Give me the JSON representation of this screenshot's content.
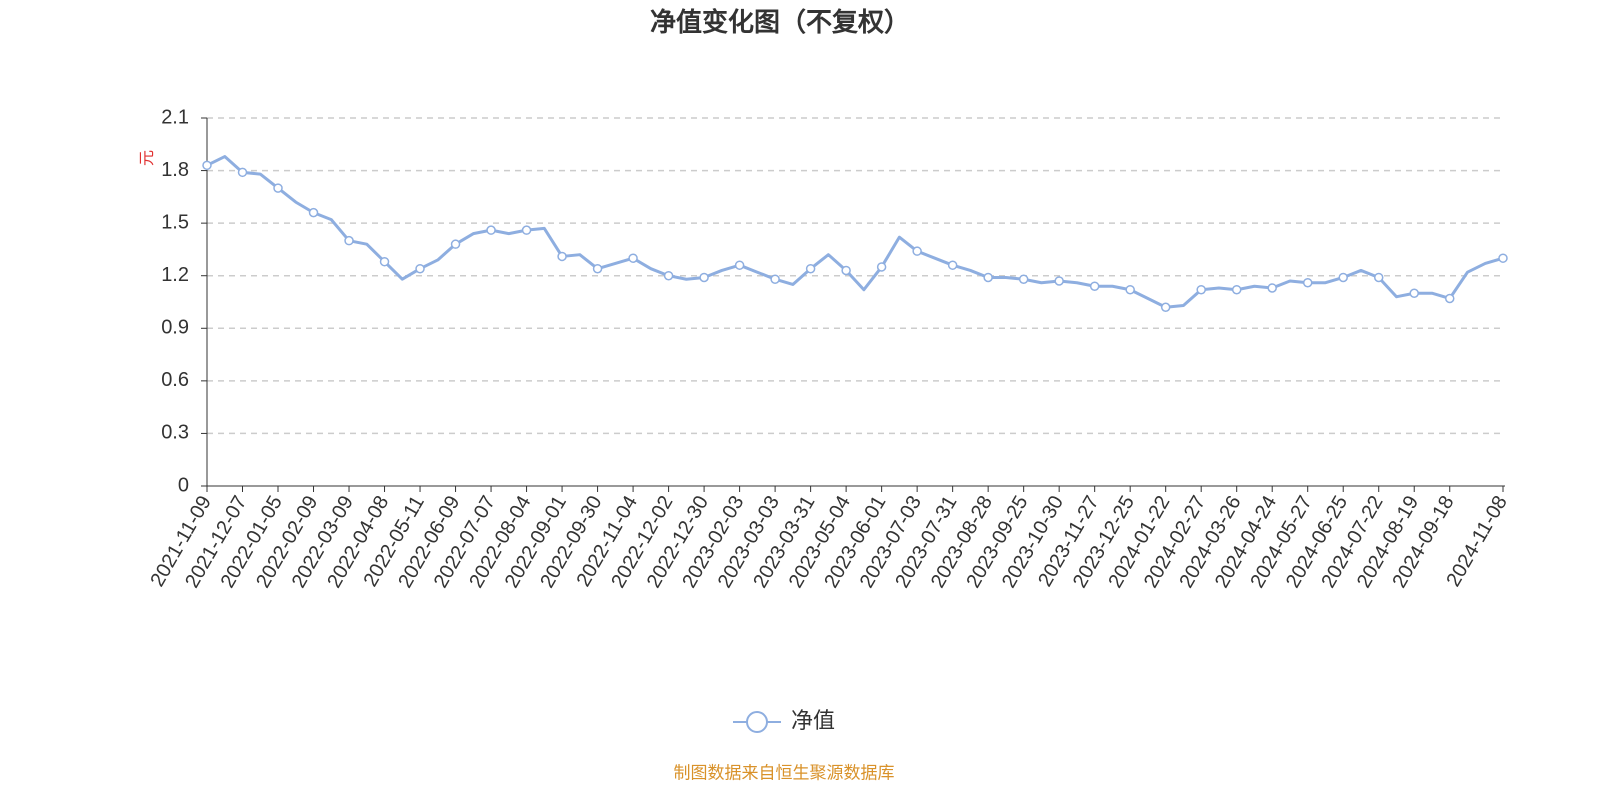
{
  "chart_data": {
    "type": "line",
    "title": "净值变化图（不复权）",
    "y_unit": "元",
    "categories": [
      "2021-11-09",
      null,
      "2021-12-07",
      null,
      "2022-01-05",
      null,
      "2022-02-09",
      null,
      "2022-03-09",
      null,
      "2022-04-08",
      null,
      "2022-05-11",
      null,
      "2022-06-09",
      null,
      "2022-07-07",
      null,
      "2022-08-04",
      null,
      "2022-09-01",
      null,
      "2022-09-30",
      null,
      "2022-11-04",
      null,
      "2022-12-02",
      null,
      "2022-12-30",
      null,
      "2023-02-03",
      null,
      "2023-03-03",
      null,
      "2023-03-31",
      null,
      "2023-05-04",
      null,
      "2023-06-01",
      null,
      "2023-07-03",
      null,
      "2023-07-31",
      null,
      "2023-08-28",
      null,
      "2023-09-25",
      null,
      "2023-10-30",
      null,
      "2023-11-27",
      null,
      "2023-12-25",
      null,
      "2024-01-22",
      null,
      "2024-02-27",
      null,
      "2024-03-26",
      null,
      "2024-04-24",
      null,
      "2024-05-27",
      null,
      "2024-06-25",
      null,
      "2024-07-22",
      null,
      "2024-08-19",
      null,
      "2024-09-18",
      null,
      null,
      "2024-11-08"
    ],
    "series": [
      {
        "name": "净值",
        "color": "#8eaee0",
        "values": [
          1.83,
          1.88,
          1.79,
          1.78,
          1.7,
          1.62,
          1.56,
          1.52,
          1.4,
          1.38,
          1.28,
          1.18,
          1.24,
          1.29,
          1.38,
          1.44,
          1.46,
          1.44,
          1.46,
          1.47,
          1.31,
          1.32,
          1.24,
          1.27,
          1.3,
          1.24,
          1.2,
          1.18,
          1.19,
          1.23,
          1.26,
          1.22,
          1.18,
          1.15,
          1.24,
          1.32,
          1.23,
          1.12,
          1.25,
          1.42,
          1.34,
          1.3,
          1.26,
          1.23,
          1.19,
          1.19,
          1.18,
          1.16,
          1.17,
          1.16,
          1.14,
          1.14,
          1.12,
          1.07,
          1.02,
          1.03,
          1.12,
          1.13,
          1.12,
          1.14,
          1.13,
          1.17,
          1.16,
          1.16,
          1.19,
          1.23,
          1.19,
          1.08,
          1.1,
          1.1,
          1.07,
          1.22,
          1.27,
          1.3
        ]
      }
    ],
    "ylim": [
      0,
      2.1
    ],
    "yticks": [
      0,
      0.3,
      0.6,
      0.9,
      1.2,
      1.5,
      1.8,
      2.1
    ],
    "grid": true,
    "legend": "bottom",
    "source": "制图数据来自恒生聚源数据库"
  }
}
